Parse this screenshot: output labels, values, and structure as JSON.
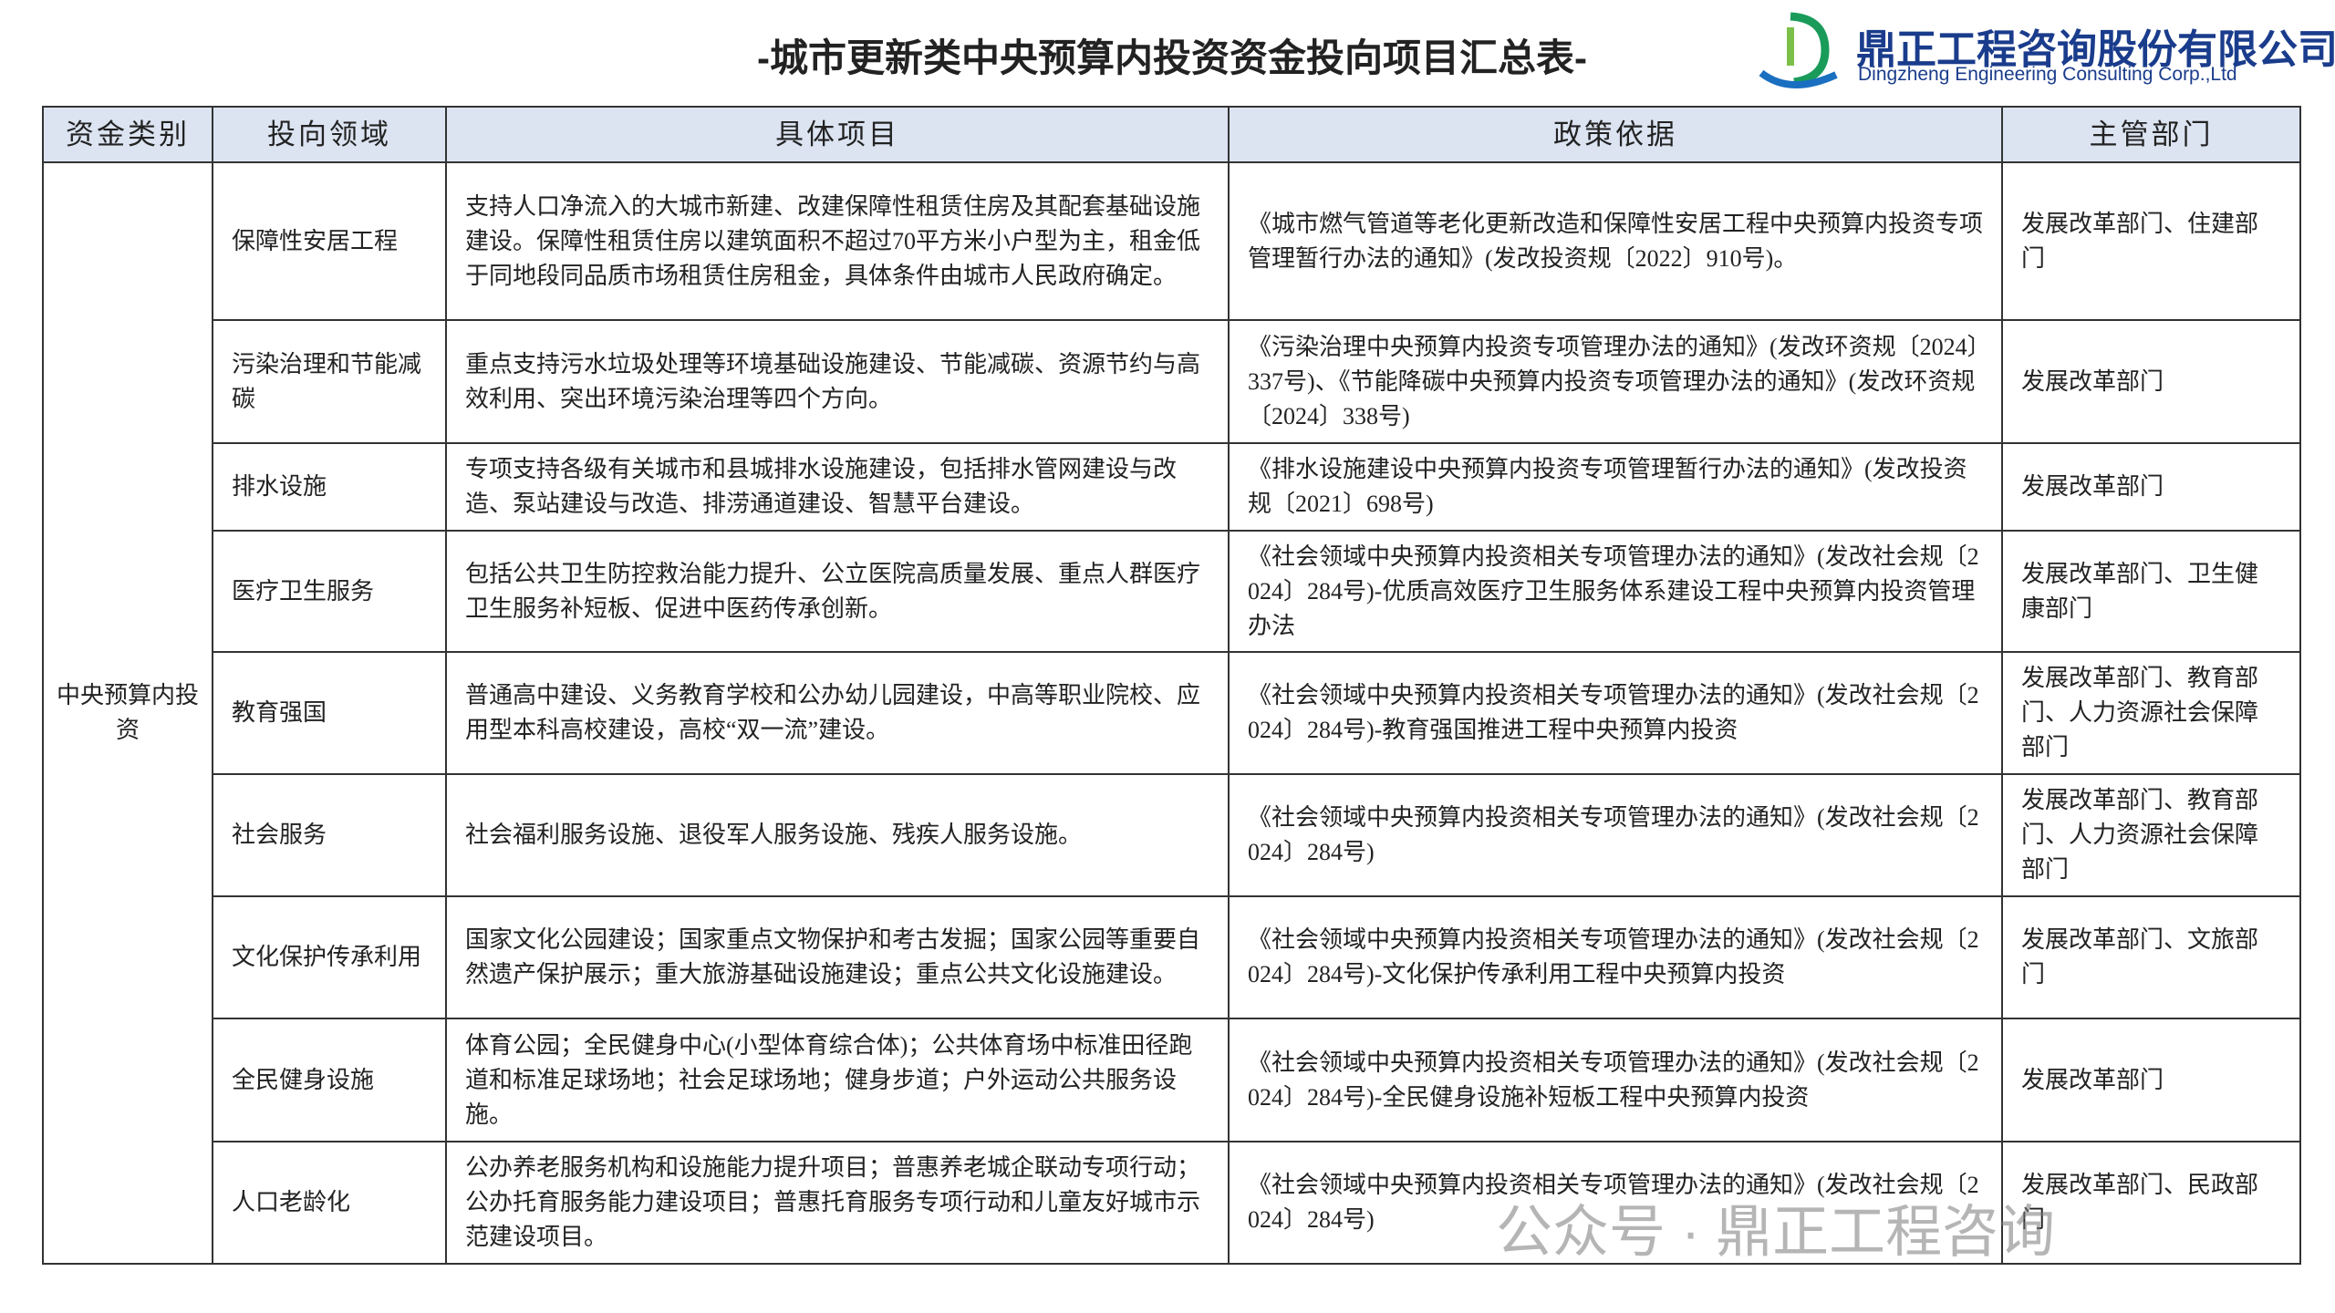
{
  "header": {
    "title": "-城市更新类中央预算内投资资金投向项目汇总表-",
    "company_cn": "鼎正工程咨询股份有限公司",
    "company_en": "Dingzheng Engineering Consulting Corp.,Ltd"
  },
  "table": {
    "columns": [
      "资金类别",
      "投向领域",
      "具体项目",
      "政策依据",
      "主管部门"
    ],
    "category": "中央预算内投资",
    "rows": [
      [
        "保障性安居工程",
        "支持人口净流入的大城市新建、改建保障性租赁住房及其配套基础设施建设。保障性租赁住房以建筑面积不超过70平方米小户型为主，租金低于同地段同品质市场租赁住房租金，具体条件由城市人民政府确定。",
        "《城市燃气管道等老化更新改造和保障性安居工程中央预算内投资专项管理暂行办法的通知》(发改投资规〔2022〕910号)。",
        "发展改革部门、住建部门"
      ],
      [
        "污染治理和节能减碳",
        "重点支持污水垃圾处理等环境基础设施建设、节能减碳、资源节约与高效利用、突出环境污染治理等四个方向。",
        "《污染治理中央预算内投资专项管理办法的通知》(发改环资规〔2024〕337号)、《节能降碳中央预算内投资专项管理办法的通知》(发改环资规〔2024〕338号)",
        "发展改革部门"
      ],
      [
        "排水设施",
        "专项支持各级有关城市和县城排水设施建设，包括排水管网建设与改造、泵站建设与改造、排涝通道建设、智慧平台建设。",
        "《排水设施建设中央预算内投资专项管理暂行办法的通知》(发改投资规〔2021〕698号)",
        "发展改革部门"
      ],
      [
        "医疗卫生服务",
        "包括公共卫生防控救治能力提升、公立医院高质量发展、重点人群医疗卫生服务补短板、促进中医药传承创新。",
        "《社会领域中央预算内投资相关专项管理办法的通知》(发改社会规〔2024〕284号)-优质高效医疗卫生服务体系建设工程中央预算内投资管理办法",
        "发展改革部门、卫生健康部门"
      ],
      [
        "教育强国",
        "普通高中建设、义务教育学校和公办幼儿园建设，中高等职业院校、应用型本科高校建设，高校“双一流”建设。",
        "《社会领域中央预算内投资相关专项管理办法的通知》(发改社会规〔2024〕284号)-教育强国推进工程中央预算内投资",
        "发展改革部门、教育部门、人力资源社会保障部门"
      ],
      [
        "社会服务",
        "社会福利服务设施、退役军人服务设施、残疾人服务设施。",
        "《社会领域中央预算内投资相关专项管理办法的通知》(发改社会规〔2024〕284号)",
        "发展改革部门、教育部门、人力资源社会保障部门"
      ],
      [
        "文化保护传承利用",
        "国家文化公园建设；国家重点文物保护和考古发掘；国家公园等重要自然遗产保护展示；重大旅游基础设施建设；重点公共文化设施建设。",
        "《社会领域中央预算内投资相关专项管理办法的通知》(发改社会规〔2024〕284号)-文化保护传承利用工程中央预算内投资",
        "发展改革部门、文旅部门"
      ],
      [
        "全民健身设施",
        "体育公园；全民健身中心(小型体育综合体)；公共体育场中标准田径跑道和标准足球场地；社会足球场地；健身步道；户外运动公共服务设施。",
        "《社会领域中央预算内投资相关专项管理办法的通知》(发改社会规〔2024〕284号)-全民健身设施补短板工程中央预算内投资",
        "发展改革部门"
      ],
      [
        "人口老龄化",
        "公办养老服务机构和设施能力提升项目；普惠养老城企联动专项行动；公办托育服务能力建设项目；普惠托育服务专项行动和儿童友好城市示范建设项目。",
        "《社会领域中央预算内投资相关专项管理办法的通知》(发改社会规〔2024〕284号)",
        "发展改革部门、民政部门"
      ]
    ]
  },
  "watermark": "公众号 · 鼎正工程咨询"
}
